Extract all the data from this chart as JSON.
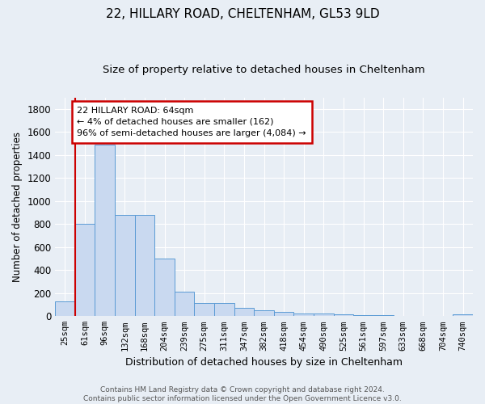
{
  "title": "22, HILLARY ROAD, CHELTENHAM, GL53 9LD",
  "subtitle": "Size of property relative to detached houses in Cheltenham",
  "xlabel": "Distribution of detached houses by size in Cheltenham",
  "ylabel": "Number of detached properties",
  "categories": [
    "25sqm",
    "61sqm",
    "96sqm",
    "132sqm",
    "168sqm",
    "204sqm",
    "239sqm",
    "275sqm",
    "311sqm",
    "347sqm",
    "382sqm",
    "418sqm",
    "454sqm",
    "490sqm",
    "525sqm",
    "561sqm",
    "597sqm",
    "633sqm",
    "668sqm",
    "704sqm",
    "740sqm"
  ],
  "values": [
    130,
    800,
    1490,
    880,
    880,
    500,
    210,
    115,
    115,
    75,
    50,
    35,
    25,
    25,
    15,
    8,
    8,
    5,
    5,
    5,
    18
  ],
  "bar_color": "#c9d9f0",
  "bar_edge_color": "#5b9bd5",
  "redline_x": 0.5,
  "annotation_text": "22 HILLARY ROAD: 64sqm\n← 4% of detached houses are smaller (162)\n96% of semi-detached houses are larger (4,084) →",
  "annotation_box_color": "#ffffff",
  "annotation_box_edge": "#cc0000",
  "vline_color": "#cc0000",
  "footer": "Contains HM Land Registry data © Crown copyright and database right 2024.\nContains public sector information licensed under the Open Government Licence v3.0.",
  "ylim": [
    0,
    1900
  ],
  "yticks": [
    0,
    200,
    400,
    600,
    800,
    1000,
    1200,
    1400,
    1600,
    1800
  ],
  "background_color": "#e8eef5",
  "plot_background": "#e8eef5",
  "grid_color": "#ffffff",
  "title_fontsize": 11,
  "subtitle_fontsize": 9.5
}
